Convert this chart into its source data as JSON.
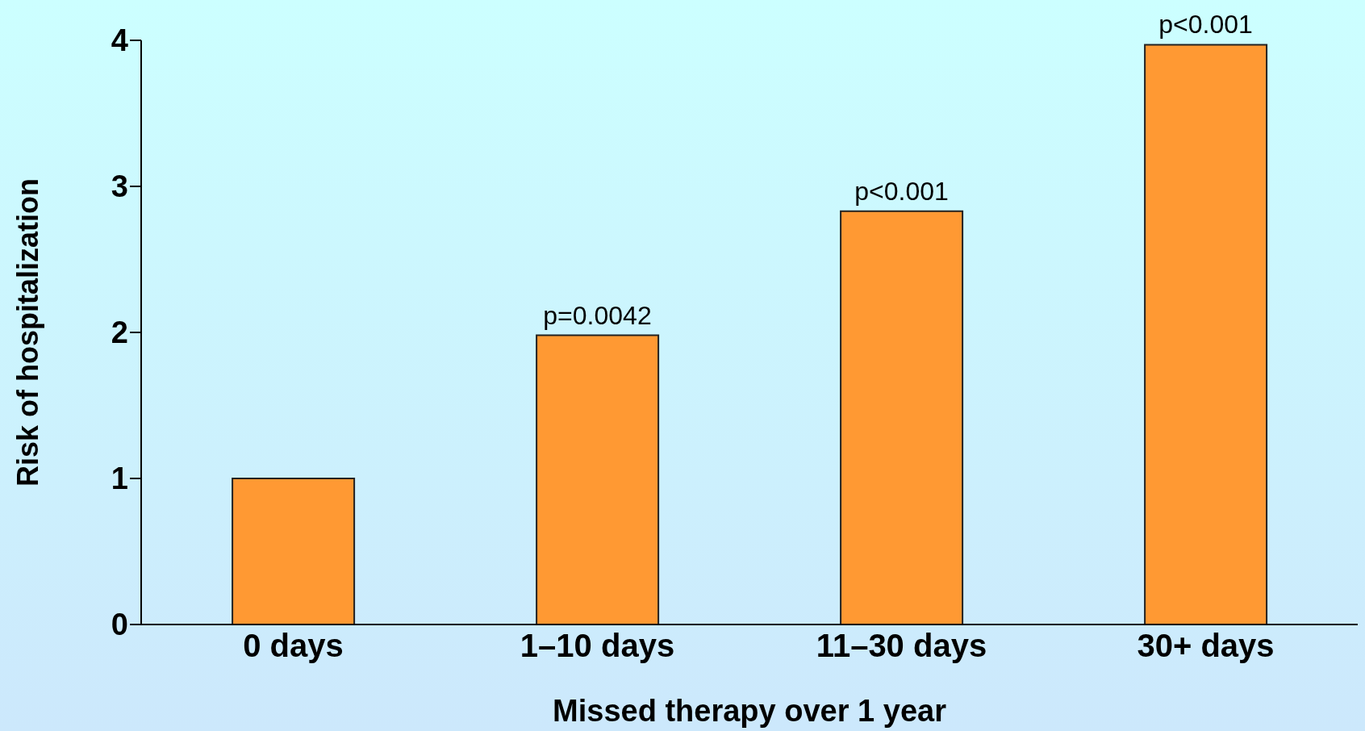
{
  "chart_data": {
    "type": "bar",
    "xlabel": "Missed therapy over 1 year",
    "ylabel": "Risk of hospitalization",
    "categories": [
      "0 days",
      "1–10 days",
      "11–30 days",
      "30+ days"
    ],
    "values": [
      1,
      1.98,
      2.83,
      3.97
    ],
    "color": "#ff9933",
    "ylim": [
      0,
      4
    ],
    "yticks": [
      0,
      1,
      2,
      3,
      4
    ],
    "grid": false,
    "legend": false,
    "annotations": [
      {
        "text": "p=0.0042",
        "x": "1–10 days",
        "y": 1.98
      },
      {
        "text": "p<0.001",
        "x": "11–30 days",
        "y": 2.83
      },
      {
        "text": "p<0.001",
        "x": "30+ days",
        "y": 3.97
      }
    ]
  }
}
